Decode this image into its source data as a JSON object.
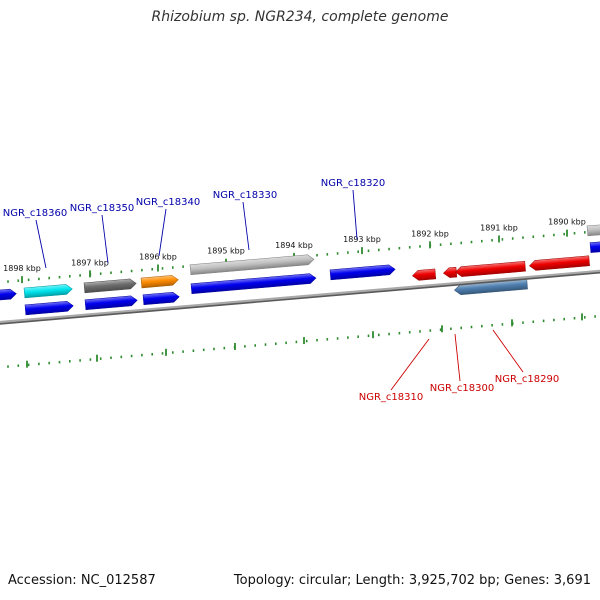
{
  "title": "Rhizobium sp. NGR234, complete genome",
  "footer": {
    "accession": "Accession: NC_012587",
    "topology": "Topology: circular; Length: 3,925,702 bp; Genes: 3,691"
  },
  "colors": {
    "background": "#ffffff",
    "backbone": "#808080",
    "tick": "#2e8b2e",
    "forward_label": "#0000aa",
    "reverse_label": "#cc0000",
    "blue": "#0000ee",
    "cyan": "#00e5ee",
    "dark_gray": "#6e6e6e",
    "orange": "#ff8c00",
    "light_gray": "#c0c0c0",
    "red": "#ee0000",
    "steel_blue": "#4f7fb0"
  },
  "ticks": [
    {
      "label": "1898 kbp"
    },
    {
      "label": "1897 kbp"
    },
    {
      "label": "1896 kbp"
    },
    {
      "label": "1895 kbp"
    },
    {
      "label": "1894 kbp"
    },
    {
      "label": "1893 kbp"
    },
    {
      "label": "1892 kbp"
    },
    {
      "label": "1891 kbp"
    },
    {
      "label": "1890 kbp"
    }
  ],
  "forward_labels": [
    {
      "name": "NGR_c18360"
    },
    {
      "name": "NGR_c18350"
    },
    {
      "name": "NGR_c18340"
    },
    {
      "name": "NGR_c18330"
    },
    {
      "name": "NGR_c18320"
    }
  ],
  "reverse_labels": [
    {
      "name": "NGR_c18310"
    },
    {
      "name": "NGR_c18300"
    },
    {
      "name": "NGR_c18290"
    }
  ],
  "genes": [
    {
      "strand": "forward",
      "color": "cyan"
    },
    {
      "strand": "forward",
      "color": "dark_gray"
    },
    {
      "strand": "forward",
      "color": "orange"
    },
    {
      "strand": "forward",
      "color": "light_gray"
    },
    {
      "strand": "forward",
      "color": "blue"
    },
    {
      "strand": "forward",
      "color": "light_gray"
    },
    {
      "strand": "forward",
      "color": "blue"
    },
    {
      "strand": "forward",
      "color": "blue"
    },
    {
      "strand": "forward",
      "color": "blue"
    },
    {
      "strand": "forward",
      "color": "blue"
    },
    {
      "strand": "forward",
      "color": "blue"
    },
    {
      "strand": "forward",
      "color": "blue"
    },
    {
      "strand": "reverse",
      "color": "red"
    },
    {
      "strand": "reverse",
      "color": "red"
    },
    {
      "strand": "reverse",
      "color": "red"
    },
    {
      "strand": "reverse",
      "color": "red"
    },
    {
      "strand": "reverse",
      "color": "steel_blue"
    }
  ]
}
